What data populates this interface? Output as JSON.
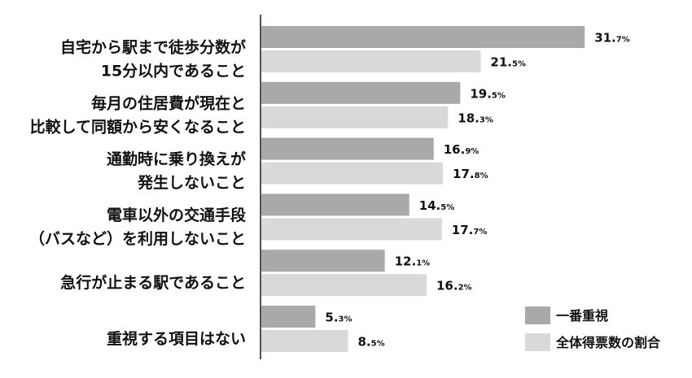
{
  "chart_data": {
    "type": "bar",
    "orientation": "horizontal",
    "title": "",
    "xlabel": "",
    "ylabel": "",
    "categories": [
      [
        "自宅から駅まで徒歩分数が",
        "15分以内であること"
      ],
      [
        "毎月の住居費が現在と",
        "比較して同額から安くなること"
      ],
      [
        "通勤時に乗り換えが",
        "発生しないこと"
      ],
      [
        "電車以外の交通手段",
        "（バスなど）を利用しないこと"
      ],
      [
        "急行が止まる駅であること"
      ],
      [
        "重視する項目はない"
      ]
    ],
    "series": [
      {
        "name": "一番重視",
        "color": "#a9a9a9",
        "values": [
          31.7,
          19.5,
          16.9,
          14.5,
          12.1,
          5.3
        ],
        "labels": [
          [
            "31.",
            "7%"
          ],
          [
            "19.",
            "5%"
          ],
          [
            "16.",
            "9%"
          ],
          [
            "14.",
            "5%"
          ],
          [
            "12.",
            "1%"
          ],
          [
            "5.",
            "3%"
          ]
        ]
      },
      {
        "name": "全体得票数の割合",
        "color": "#d9d9d9",
        "values": [
          21.5,
          18.3,
          17.8,
          17.7,
          16.2,
          8.5
        ],
        "labels": [
          [
            "21.",
            "5%"
          ],
          [
            "18.",
            "3%"
          ],
          [
            "17.",
            "8%"
          ],
          [
            "17.",
            "7%"
          ],
          [
            "16.",
            "2%"
          ],
          [
            "8.",
            "5%"
          ]
        ]
      }
    ],
    "xlim": [
      0,
      31.7
    ],
    "grid": false,
    "legend_position": "bottom-right",
    "axis_color": "#555555"
  }
}
